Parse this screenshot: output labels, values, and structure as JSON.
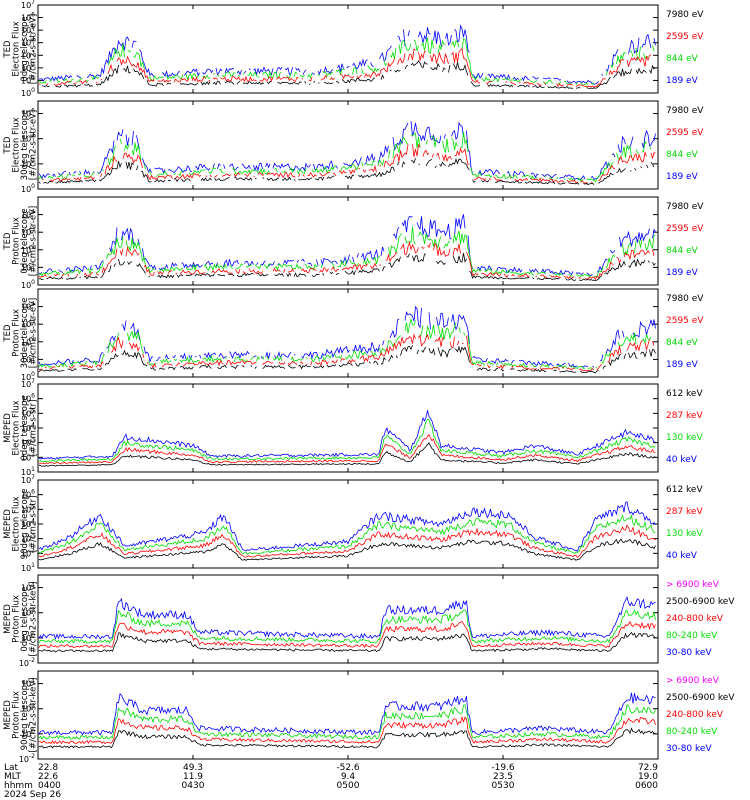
{
  "colors": {
    "black": "#000000",
    "red": "#ff0000",
    "green": "#00dd00",
    "blue": "#0000ff",
    "magenta": "#ff00ff"
  },
  "footer": {
    "rows": [
      {
        "label": "Lat",
        "values": [
          "22.8",
          "49.3",
          "-52.6",
          "-19.6",
          "72.9"
        ]
      },
      {
        "label": "MLT",
        "values": [
          "22.6",
          "11.9",
          "9.4",
          "23.5",
          "19.0"
        ]
      },
      {
        "label": "hhmm",
        "values": [
          "0400",
          "0430",
          "0500",
          "0530",
          "0600"
        ]
      }
    ],
    "date": "2024 Sep 26"
  },
  "chart_data": [
    {
      "type": "line",
      "ylabel": [
        "TED",
        "Electron Flux",
        "0deg telescope",
        "[#/cm2-s-str-eV]"
      ],
      "ylog": [
        0,
        7
      ],
      "yticks": [
        0,
        1,
        2,
        3,
        4,
        5,
        6,
        7
      ],
      "series": [
        {
          "name": "7980 eV",
          "color": "black"
        },
        {
          "name": "2595 eV",
          "color": "red"
        },
        {
          "name": "844 eV",
          "color": "green"
        },
        {
          "name": "189 eV",
          "color": "blue"
        }
      ]
    },
    {
      "type": "line",
      "ylabel": [
        "TED",
        "Electron Flux",
        "30deg telescope",
        "[#/cm2-s-str-eV]"
      ],
      "ylog": [
        0,
        7
      ],
      "yticks": [
        0,
        2,
        4,
        6
      ],
      "series": [
        {
          "name": "7980 eV",
          "color": "black"
        },
        {
          "name": "2595 eV",
          "color": "red"
        },
        {
          "name": "844 eV",
          "color": "green"
        },
        {
          "name": "189 eV",
          "color": "blue"
        }
      ]
    },
    {
      "type": "line",
      "ylabel": [
        "TED",
        "Proton Flux",
        "0deg telescope",
        "[#/cm2-s-str-eV]"
      ],
      "ylog": [
        0,
        5
      ],
      "yticks": [
        0,
        1,
        2,
        3,
        4
      ],
      "series": [
        {
          "name": "7980 eV",
          "color": "black"
        },
        {
          "name": "2595 eV",
          "color": "red"
        },
        {
          "name": "844 eV",
          "color": "green"
        },
        {
          "name": "189 eV",
          "color": "blue"
        }
      ]
    },
    {
      "type": "line",
      "ylabel": [
        "TED",
        "Proton Flux",
        "30deg telescope",
        "[#/cm2-s-str-eV]"
      ],
      "ylog": [
        0,
        5
      ],
      "yticks": [
        0,
        1,
        2,
        3,
        4
      ],
      "series": [
        {
          "name": "7980 eV",
          "color": "black"
        },
        {
          "name": "2595 eV",
          "color": "red"
        },
        {
          "name": "844 eV",
          "color": "green"
        },
        {
          "name": "189 eV",
          "color": "blue"
        }
      ]
    },
    {
      "type": "line",
      "ylabel": [
        "MEPED",
        "Electron Flux",
        "0deg telescope",
        "[#/cm2-s-str]"
      ],
      "ylog": [
        1,
        7
      ],
      "yticks": [
        1,
        2,
        3,
        4,
        5,
        6,
        7
      ],
      "series": [
        {
          "name": "612 keV",
          "color": "black"
        },
        {
          "name": "287 keV",
          "color": "red"
        },
        {
          "name": "130 keV",
          "color": "green"
        },
        {
          "name": "40 keV",
          "color": "blue"
        }
      ]
    },
    {
      "type": "line",
      "ylabel": [
        "MEPED",
        "Electron Flux",
        "90deg telescope",
        "[#/cm2-s-str]"
      ],
      "ylog": [
        1,
        7
      ],
      "yticks": [
        1,
        2,
        3,
        4,
        5,
        6,
        7
      ],
      "series": [
        {
          "name": "612 keV",
          "color": "black"
        },
        {
          "name": "287 keV",
          "color": "red"
        },
        {
          "name": "130 keV",
          "color": "green"
        },
        {
          "name": "40 keV",
          "color": "blue"
        }
      ]
    },
    {
      "type": "line",
      "ylabel": [
        "MEPED",
        "Proton Flux",
        "0deg telescope",
        "[#/cm2-s-str-keV]"
      ],
      "ylog": [
        -2,
        5
      ],
      "yticks": [
        -2,
        0,
        2,
        4
      ],
      "series": [
        {
          "name": "> 6900 keV",
          "color": "magenta"
        },
        {
          "name": "2500-6900 keV",
          "color": "black"
        },
        {
          "name": "240-800 keV",
          "color": "red"
        },
        {
          "name": "80-240 keV",
          "color": "green"
        },
        {
          "name": "30-80 keV",
          "color": "blue"
        }
      ]
    },
    {
      "type": "line",
      "ylabel": [
        "MEPED",
        "Proton Flux",
        "90deg telescope",
        "[#/cm2-s-str-keV]"
      ],
      "ylog": [
        -2,
        5
      ],
      "yticks": [
        -2,
        0,
        2,
        4
      ],
      "series": [
        {
          "name": "> 6900 keV",
          "color": "magenta"
        },
        {
          "name": "2500-6900 keV",
          "color": "black"
        },
        {
          "name": "240-800 keV",
          "color": "red"
        },
        {
          "name": "80-240 keV",
          "color": "green"
        },
        {
          "name": "30-80 keV",
          "color": "blue"
        }
      ]
    }
  ]
}
